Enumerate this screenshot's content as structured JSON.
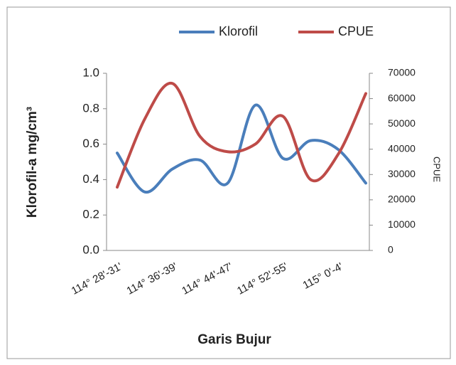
{
  "chart_data": {
    "type": "line",
    "categories": [
      "114° 28'-31'",
      null,
      "114° 36'-39'",
      null,
      "114° 44'-47'",
      null,
      "114° 52'-55'",
      null,
      "115° 0'-4'",
      null
    ],
    "series": [
      {
        "name": "Klorofil",
        "color": "#4a7ebb",
        "values": [
          0.55,
          0.33,
          0.46,
          0.51,
          0.38,
          0.82,
          0.52,
          0.62,
          0.57,
          0.38
        ]
      },
      {
        "name": "CPUE",
        "color": "#be4b48",
        "axis": "y2",
        "values": [
          25000,
          52000,
          66000,
          45000,
          39000,
          42000,
          53000,
          28000,
          38000,
          62000
        ]
      }
    ],
    "ylabel": "Klorofil-a mg/cm³",
    "y2label": "CPUE",
    "xlabel": "Garis Bujur",
    "ylim": [
      0,
      1
    ],
    "yticks": [
      {
        "value": 0,
        "label": "0.0"
      },
      0.2,
      0.4,
      0.6,
      0.8,
      {
        "value": 1,
        "label": "1.0"
      }
    ],
    "y2lim": [
      0,
      70000
    ],
    "y2ticks": [
      0,
      10000,
      20000,
      30000,
      40000,
      50000,
      60000,
      70000
    ],
    "legend": "top",
    "smooth": true
  }
}
